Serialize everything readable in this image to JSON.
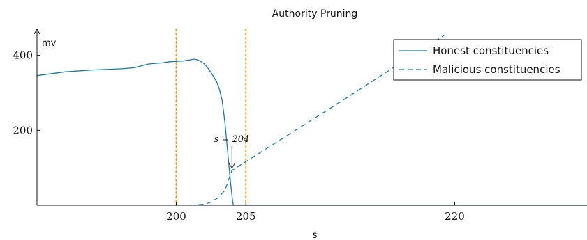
{
  "chart_data": {
    "type": "line",
    "title": "Authority Pruning",
    "xlabel": "s",
    "ylabel": "mv",
    "xlim": [
      190,
      229.5
    ],
    "ylim": [
      0,
      455
    ],
    "x_ticks": [
      200,
      205,
      220
    ],
    "y_ticks": [
      200,
      400
    ],
    "grid": false,
    "legend_position": "top-right",
    "vertical_markers": [
      {
        "x": 200,
        "color": "#f0a020",
        "style": "dotted"
      },
      {
        "x": 205,
        "color": "#f0a020",
        "style": "dotted"
      }
    ],
    "annotation": {
      "text": "s = 204",
      "x": 204,
      "y": 93
    },
    "series": [
      {
        "name": "Honest constituencies",
        "color": "#1a7aa0",
        "dash": "solid",
        "points": [
          [
            190,
            346
          ],
          [
            192,
            356
          ],
          [
            194,
            361
          ],
          [
            196,
            364
          ],
          [
            197,
            367
          ],
          [
            198,
            377
          ],
          [
            199,
            380
          ],
          [
            199.5,
            383
          ],
          [
            200,
            384
          ],
          [
            200.5,
            385
          ],
          [
            201,
            388
          ],
          [
            201.3,
            390
          ],
          [
            201.6,
            387
          ],
          [
            202,
            378
          ],
          [
            202.3,
            365
          ],
          [
            202.6,
            348
          ],
          [
            202.9,
            330
          ],
          [
            203.1,
            310
          ],
          [
            203.3,
            280
          ],
          [
            203.5,
            220
          ],
          [
            203.7,
            140
          ],
          [
            203.9,
            60
          ],
          [
            204.05,
            10
          ],
          [
            204.1,
            0
          ],
          [
            229.5,
            0
          ]
        ]
      },
      {
        "name": "Malicious constituencies",
        "color": "#1a7aa0",
        "dash": "dashed",
        "points": [
          [
            201,
            0
          ],
          [
            201.5,
            1
          ],
          [
            202,
            3
          ],
          [
            202.5,
            8
          ],
          [
            203,
            20
          ],
          [
            203.5,
            40
          ],
          [
            204,
            93
          ],
          [
            206,
            140
          ],
          [
            208,
            187
          ],
          [
            210,
            234
          ],
          [
            212,
            281
          ],
          [
            214,
            329
          ],
          [
            216,
            377
          ],
          [
            218,
            424
          ],
          [
            219.3,
            455
          ]
        ]
      }
    ]
  }
}
